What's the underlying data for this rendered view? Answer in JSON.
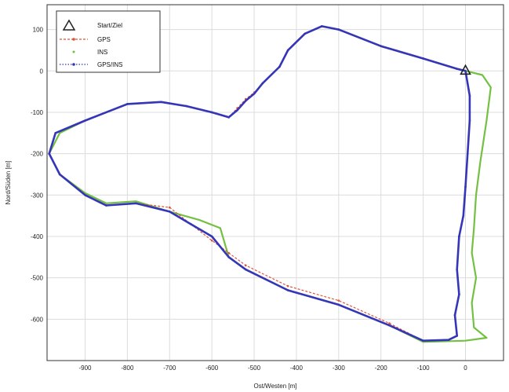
{
  "chart_data": {
    "type": "line",
    "title": "",
    "xlabel": "Ost/Westen [m]",
    "ylabel": "Nord/Süden [m]",
    "xlim": [
      -990,
      90
    ],
    "ylim": [
      -700,
      160
    ],
    "xticks": [
      -900,
      -800,
      -700,
      -600,
      -500,
      -400,
      -300,
      -200,
      -100,
      0
    ],
    "yticks": [
      100,
      0,
      -100,
      -200,
      -300,
      -400,
      -500,
      -600
    ],
    "grid": true,
    "legend_position": "top-left",
    "start_marker": {
      "name": "Start/Ziel",
      "x": 0,
      "y": 0,
      "color": "#222222"
    },
    "series": [
      {
        "name": "GPS",
        "color": "#e0553a",
        "style": "dashed-marker",
        "points": [
          [
            -560,
            -112
          ],
          [
            -540,
            -90
          ],
          [
            -520,
            -68
          ],
          [
            -500,
            -52
          ],
          [
            -480,
            -30
          ],
          [
            -440,
            10
          ],
          [
            -420,
            50
          ],
          [
            -380,
            90
          ],
          [
            -340,
            108
          ],
          [
            -300,
            100
          ],
          [
            -200,
            60
          ],
          [
            -100,
            30
          ],
          [
            -20,
            5
          ],
          [
            0,
            0
          ],
          [
            5,
            -30
          ],
          [
            10,
            -60
          ],
          [
            10,
            -120
          ],
          [
            5,
            -200
          ],
          [
            0,
            -280
          ],
          [
            -5,
            -350
          ],
          [
            -15,
            -400
          ],
          [
            -20,
            -480
          ],
          [
            -15,
            -540
          ],
          [
            -25,
            -590
          ],
          [
            -20,
            -640
          ],
          [
            -40,
            -650
          ],
          [
            -100,
            -652
          ],
          [
            -180,
            -610
          ],
          [
            -300,
            -555
          ],
          [
            -420,
            -520
          ],
          [
            -520,
            -470
          ],
          [
            -560,
            -440
          ],
          [
            -600,
            -410
          ],
          [
            -650,
            -370
          ],
          [
            -700,
            -330
          ],
          [
            -780,
            -320
          ],
          [
            -850,
            -325
          ],
          [
            -900,
            -300
          ],
          [
            -960,
            -250
          ],
          [
            -985,
            -200
          ],
          [
            -970,
            -150
          ],
          [
            -900,
            -120
          ],
          [
            -800,
            -80
          ],
          [
            -720,
            -75
          ],
          [
            -660,
            -85
          ],
          [
            -600,
            -100
          ],
          [
            -560,
            -112
          ]
        ]
      },
      {
        "name": "INS",
        "color": "#73c043",
        "style": "solid",
        "points": [
          [
            -560,
            -112
          ],
          [
            -540,
            -95
          ],
          [
            -520,
            -72
          ],
          [
            -500,
            -55
          ],
          [
            -480,
            -30
          ],
          [
            -440,
            10
          ],
          [
            -420,
            50
          ],
          [
            -380,
            90
          ],
          [
            -340,
            108
          ],
          [
            -300,
            100
          ],
          [
            -200,
            60
          ],
          [
            -100,
            30
          ],
          [
            -20,
            5
          ],
          [
            40,
            -10
          ],
          [
            60,
            -40
          ],
          [
            50,
            -120
          ],
          [
            35,
            -220
          ],
          [
            25,
            -300
          ],
          [
            20,
            -380
          ],
          [
            15,
            -440
          ],
          [
            25,
            -500
          ],
          [
            15,
            -560
          ],
          [
            20,
            -620
          ],
          [
            50,
            -645
          ],
          [
            0,
            -652
          ],
          [
            -100,
            -655
          ],
          [
            -180,
            -615
          ],
          [
            -300,
            -565
          ],
          [
            -420,
            -530
          ],
          [
            -520,
            -480
          ],
          [
            -560,
            -450
          ],
          [
            -580,
            -380
          ],
          [
            -630,
            -360
          ],
          [
            -700,
            -340
          ],
          [
            -780,
            -315
          ],
          [
            -850,
            -320
          ],
          [
            -900,
            -295
          ],
          [
            -960,
            -250
          ],
          [
            -985,
            -200
          ],
          [
            -960,
            -150
          ],
          [
            -900,
            -120
          ],
          [
            -800,
            -80
          ],
          [
            -720,
            -75
          ],
          [
            -660,
            -85
          ],
          [
            -600,
            -100
          ],
          [
            -560,
            -112
          ]
        ]
      },
      {
        "name": "GPS/INS",
        "color": "#3535b8",
        "style": "solid-marker",
        "points": [
          [
            -560,
            -112
          ],
          [
            -540,
            -95
          ],
          [
            -520,
            -72
          ],
          [
            -500,
            -55
          ],
          [
            -480,
            -30
          ],
          [
            -440,
            10
          ],
          [
            -420,
            50
          ],
          [
            -380,
            90
          ],
          [
            -340,
            108
          ],
          [
            -300,
            100
          ],
          [
            -200,
            60
          ],
          [
            -100,
            30
          ],
          [
            -20,
            5
          ],
          [
            0,
            0
          ],
          [
            5,
            -30
          ],
          [
            10,
            -60
          ],
          [
            10,
            -120
          ],
          [
            5,
            -200
          ],
          [
            0,
            -280
          ],
          [
            -5,
            -350
          ],
          [
            -15,
            -400
          ],
          [
            -20,
            -480
          ],
          [
            -15,
            -540
          ],
          [
            -25,
            -590
          ],
          [
            -20,
            -640
          ],
          [
            -40,
            -650
          ],
          [
            -100,
            -652
          ],
          [
            -180,
            -615
          ],
          [
            -300,
            -565
          ],
          [
            -420,
            -530
          ],
          [
            -520,
            -480
          ],
          [
            -560,
            -450
          ],
          [
            -600,
            -400
          ],
          [
            -650,
            -370
          ],
          [
            -700,
            -340
          ],
          [
            -780,
            -320
          ],
          [
            -850,
            -325
          ],
          [
            -900,
            -300
          ],
          [
            -960,
            -250
          ],
          [
            -985,
            -200
          ],
          [
            -970,
            -150
          ],
          [
            -900,
            -120
          ],
          [
            -800,
            -80
          ],
          [
            -720,
            -75
          ],
          [
            -660,
            -85
          ],
          [
            -600,
            -100
          ],
          [
            -560,
            -112
          ]
        ]
      }
    ]
  }
}
